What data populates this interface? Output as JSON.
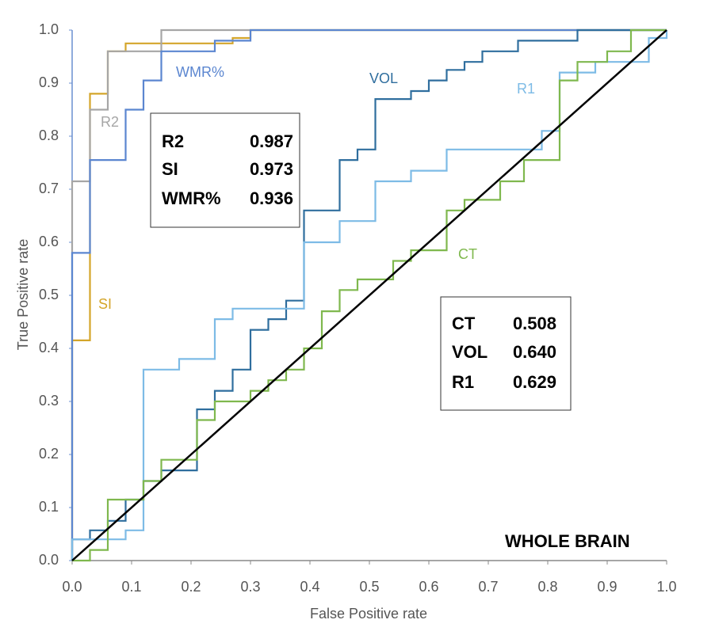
{
  "chart_data": {
    "type": "line",
    "xlabel": "False Positive rate",
    "ylabel": "True Positive rate",
    "xlim": [
      0,
      1
    ],
    "ylim": [
      0,
      1
    ],
    "xticks": [
      {
        "value": 0,
        "label": "0.0"
      },
      0.1,
      0.2,
      0.3,
      0.4,
      0.5,
      0.6,
      0.7,
      0.8,
      0.9,
      {
        "value": 1,
        "label": "1.0"
      }
    ],
    "yticks": [
      {
        "value": 0,
        "label": "0.0"
      },
      0.1,
      0.2,
      0.3,
      0.4,
      0.5,
      0.6,
      0.7,
      0.8,
      0.9,
      {
        "value": 1,
        "label": "1.0"
      }
    ],
    "series": [
      {
        "name": "SI",
        "color": "#d4a52a",
        "x": [
          0,
          0,
          0.03,
          0.03,
          0.06,
          0.06,
          0.09,
          0.09,
          0.27,
          0.27,
          0.3,
          0.3,
          1
        ],
        "values": [
          0,
          0.415,
          0.415,
          0.88,
          0.88,
          0.96,
          0.96,
          0.975,
          0.975,
          0.985,
          0.985,
          1,
          1
        ]
      },
      {
        "name": "R2",
        "color": "#a6a6a6",
        "x": [
          0,
          0,
          0.03,
          0.03,
          0.06,
          0.06,
          0.15,
          0.15,
          1
        ],
        "values": [
          0,
          0.715,
          0.715,
          0.85,
          0.85,
          0.96,
          0.96,
          1,
          1
        ]
      },
      {
        "name": "WMR%",
        "color": "#5b86d0",
        "x": [
          0,
          0,
          0.03,
          0.03,
          0.09,
          0.09,
          0.12,
          0.12,
          0.15,
          0.15,
          0.24,
          0.24,
          0.3,
          0.3,
          1
        ],
        "values": [
          0,
          0.58,
          0.58,
          0.755,
          0.755,
          0.85,
          0.85,
          0.905,
          0.905,
          0.96,
          0.96,
          0.98,
          0.98,
          1,
          1
        ]
      },
      {
        "name": "VOL",
        "color": "#2f6e9e",
        "x": [
          0,
          0,
          0.03,
          0.03,
          0.06,
          0.06,
          0.09,
          0.09,
          0.12,
          0.12,
          0.15,
          0.15,
          0.21,
          0.21,
          0.24,
          0.24,
          0.27,
          0.27,
          0.3,
          0.3,
          0.33,
          0.33,
          0.36,
          0.36,
          0.39,
          0.39,
          0.45,
          0.45,
          0.48,
          0.48,
          0.51,
          0.51,
          0.57,
          0.57,
          0.6,
          0.6,
          0.63,
          0.63,
          0.66,
          0.66,
          0.69,
          0.69,
          0.75,
          0.75,
          0.85,
          0.85,
          1
        ],
        "values": [
          0,
          0.04,
          0.04,
          0.057,
          0.057,
          0.075,
          0.075,
          0.115,
          0.115,
          0.15,
          0.15,
          0.17,
          0.17,
          0.285,
          0.285,
          0.32,
          0.32,
          0.36,
          0.36,
          0.435,
          0.435,
          0.455,
          0.455,
          0.49,
          0.49,
          0.66,
          0.66,
          0.755,
          0.755,
          0.775,
          0.775,
          0.87,
          0.87,
          0.885,
          0.885,
          0.905,
          0.905,
          0.925,
          0.925,
          0.94,
          0.94,
          0.96,
          0.96,
          0.98,
          0.98,
          1,
          1
        ]
      },
      {
        "name": "R1",
        "color": "#7dbbe6",
        "x": [
          0,
          0,
          0.09,
          0.09,
          0.12,
          0.12,
          0.18,
          0.18,
          0.24,
          0.24,
          0.27,
          0.27,
          0.39,
          0.39,
          0.45,
          0.45,
          0.51,
          0.51,
          0.57,
          0.57,
          0.63,
          0.63,
          0.79,
          0.79,
          0.82,
          0.82,
          0.88,
          0.88,
          0.97,
          0.97,
          1,
          1
        ],
        "values": [
          0,
          0.04,
          0.04,
          0.057,
          0.057,
          0.36,
          0.36,
          0.38,
          0.38,
          0.455,
          0.455,
          0.475,
          0.475,
          0.6,
          0.6,
          0.64,
          0.64,
          0.715,
          0.715,
          0.735,
          0.735,
          0.775,
          0.775,
          0.81,
          0.81,
          0.92,
          0.92,
          0.94,
          0.94,
          0.985,
          0.985,
          1
        ]
      },
      {
        "name": "CT",
        "color": "#7fb84e",
        "x": [
          0,
          0.03,
          0.03,
          0.06,
          0.06,
          0.12,
          0.12,
          0.15,
          0.15,
          0.21,
          0.21,
          0.24,
          0.24,
          0.3,
          0.3,
          0.33,
          0.33,
          0.36,
          0.36,
          0.39,
          0.39,
          0.42,
          0.42,
          0.45,
          0.45,
          0.48,
          0.48,
          0.54,
          0.54,
          0.57,
          0.57,
          0.63,
          0.63,
          0.66,
          0.66,
          0.72,
          0.72,
          0.76,
          0.76,
          0.82,
          0.82,
          0.85,
          0.85,
          0.9,
          0.9,
          0.94,
          0.94,
          1
        ],
        "values": [
          0,
          0,
          0.02,
          0.02,
          0.115,
          0.115,
          0.15,
          0.15,
          0.19,
          0.19,
          0.265,
          0.265,
          0.3,
          0.3,
          0.32,
          0.32,
          0.34,
          0.34,
          0.36,
          0.36,
          0.4,
          0.4,
          0.47,
          0.47,
          0.51,
          0.51,
          0.53,
          0.53,
          0.565,
          0.565,
          0.585,
          0.585,
          0.66,
          0.66,
          0.68,
          0.68,
          0.715,
          0.715,
          0.755,
          0.755,
          0.905,
          0.905,
          0.94,
          0.94,
          0.96,
          0.96,
          1,
          1
        ]
      },
      {
        "color": "#000000",
        "x": [
          0,
          1
        ],
        "values": [
          0,
          1
        ]
      }
    ],
    "auc_boxes": [
      [
        {
          "name": "R2",
          "value": 0.987
        },
        {
          "name": "SI",
          "value": 0.973
        },
        {
          "name": "WMR%",
          "value": 0.936
        }
      ],
      [
        {
          "name": "CT",
          "value": 0.508
        },
        {
          "name": "VOL",
          "value": 0.64,
          "value_label": "0.640"
        },
        {
          "name": "R1",
          "value": 0.629
        }
      ]
    ],
    "annotation": "WHOLE BRAIN"
  }
}
